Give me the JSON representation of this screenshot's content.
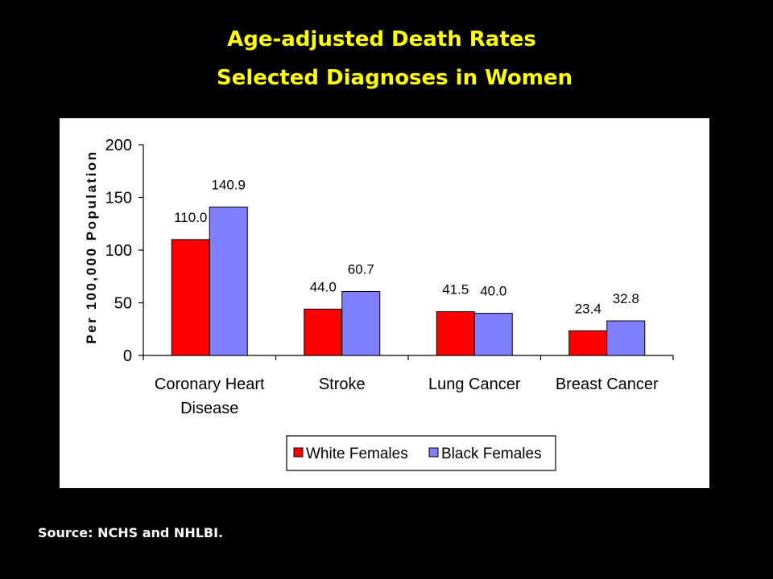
{
  "slide": {
    "title_line1": "Age-adjusted Death Rates",
    "title_line2": "Selected Diagnoses in Women",
    "source": "Source: NCHS and NHLBI."
  },
  "chart_data": {
    "type": "bar",
    "categories": [
      [
        "Coronary Heart",
        "Disease"
      ],
      [
        "Stroke"
      ],
      [
        "Lung Cancer"
      ],
      [
        "Breast Cancer"
      ]
    ],
    "series": [
      {
        "name": "White Females",
        "color": "#FF0000",
        "values": [
          110.0,
          44.0,
          41.5,
          23.4
        ],
        "labels": [
          "110.0",
          "44.0",
          "41.5",
          "23.4"
        ]
      },
      {
        "name": "Black Females",
        "color": "#8080FF",
        "values": [
          140.9,
          60.7,
          40.0,
          32.8
        ],
        "labels": [
          "140.9",
          "60.7",
          "40.0",
          "32.8"
        ]
      }
    ],
    "ylabel": "Per 100,000 Population",
    "ylim": [
      0,
      200
    ],
    "yticks": [
      0,
      50,
      100,
      150,
      200
    ],
    "grid": false,
    "legend_position": "bottom"
  }
}
